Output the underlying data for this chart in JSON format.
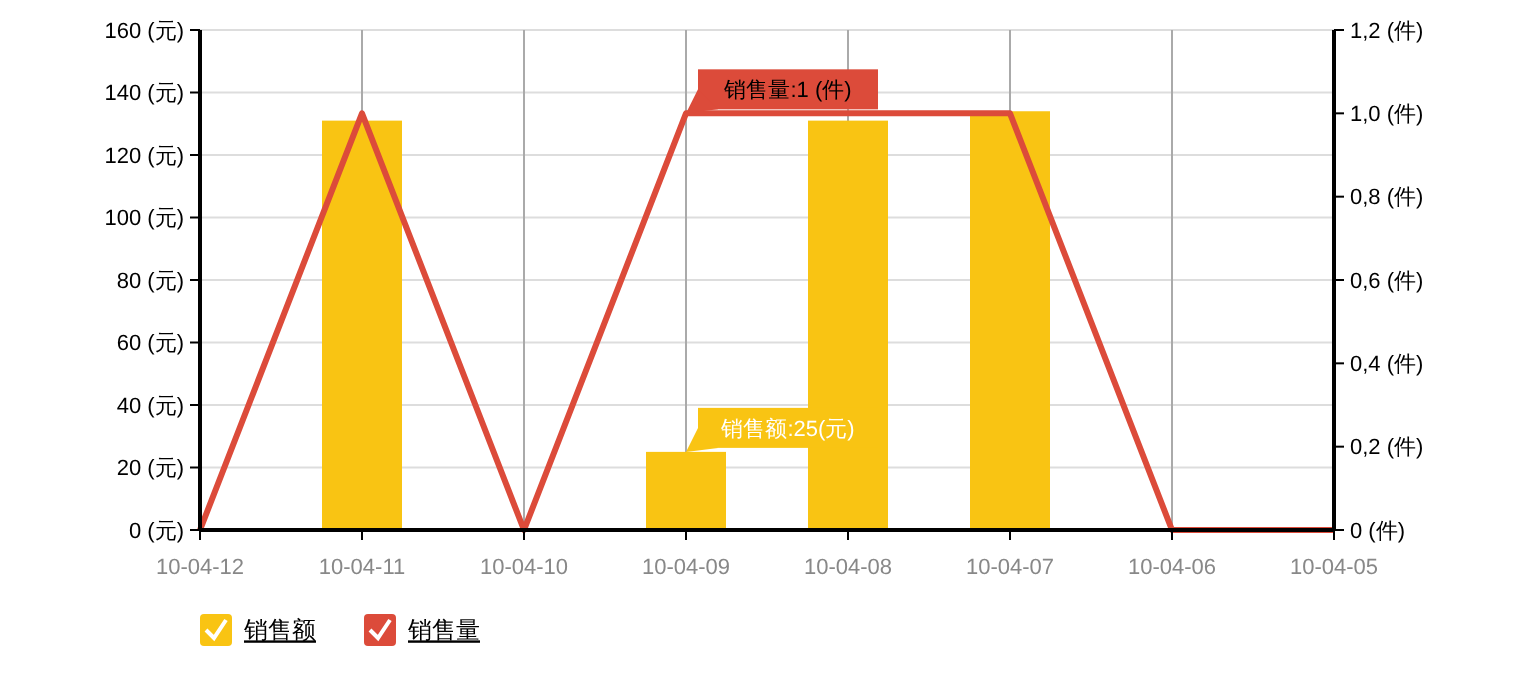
{
  "chart_data": {
    "type": "bar",
    "categories": [
      "10-04-12",
      "10-04-11",
      "10-04-10",
      "10-04-09",
      "10-04-08",
      "10-04-07",
      "10-04-06",
      "10-04-05"
    ],
    "series": [
      {
        "name": "销售额",
        "color": "#f9c413",
        "values": [
          0,
          131,
          0,
          25,
          131,
          134,
          0,
          0
        ]
      },
      {
        "name": "销售量",
        "type": "line",
        "axis": "y2",
        "color": "#dc4b3a",
        "values": [
          0,
          1,
          0,
          1,
          1,
          1,
          0,
          0
        ]
      }
    ],
    "ylim": [
      0,
      160
    ],
    "yticks": [
      {
        "value": 0,
        "label": "0 (元)"
      },
      {
        "value": 20,
        "label": "20 (元)"
      },
      {
        "value": 40,
        "label": "40 (元)"
      },
      {
        "value": 60,
        "label": "60 (元)"
      },
      {
        "value": 80,
        "label": "80 (元)"
      },
      {
        "value": 100,
        "label": "100 (元)"
      },
      {
        "value": 120,
        "label": "120 (元)"
      },
      {
        "value": 140,
        "label": "140 (元)"
      },
      {
        "value": 160,
        "label": "160 (元)"
      }
    ],
    "y2lim": [
      0,
      1.2
    ],
    "y2ticks": [
      {
        "value": 0,
        "label": "0 (件)"
      },
      {
        "value": 0.2,
        "label": "0,2 (件)"
      },
      {
        "value": 0.4,
        "label": "0,4 (件)"
      },
      {
        "value": 0.6,
        "label": "0,6 (件)"
      },
      {
        "value": 0.8,
        "label": "0,8 (件)"
      },
      {
        "value": 1,
        "label": "1,0 (件)"
      },
      {
        "value": 1.2,
        "label": "1,2 (件)"
      }
    ],
    "annotations": [
      "销售量:1 (件)",
      {
        "text": "销售额:25(元)",
        "x": "10-04-09",
        "y": 25
      }
    ],
    "grid": true,
    "legend": "bottom left",
    "marker": "none",
    "line_style": "solid"
  }
}
